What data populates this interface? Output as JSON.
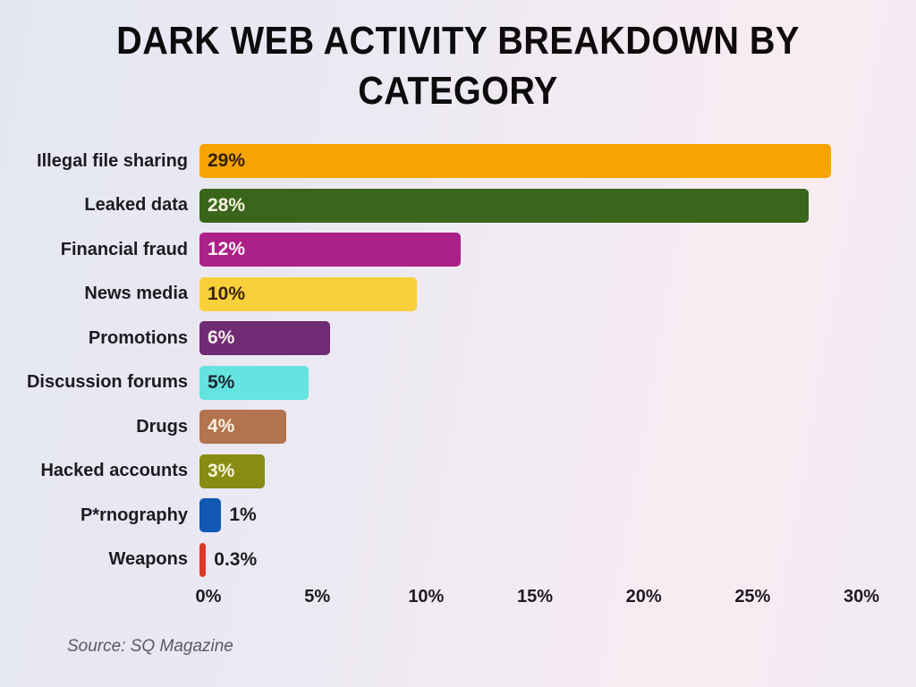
{
  "title": {
    "line1": "DARK WEB ACTIVITY BREAKDOWN BY",
    "line2": "CATEGORY",
    "full": "DARK WEB ACTIVITY BREAKDOWN BY CATEGORY"
  },
  "source": "Source: SQ Magazine",
  "colors": {
    "background_start": "#e4e7f2",
    "background_end": "#f8ecf2",
    "title_text": "#0d0b0c",
    "label_text": "#1e1a20",
    "source_text": "#5c5863"
  },
  "chart_data": {
    "type": "bar",
    "orientation": "horizontal",
    "title": "DARK WEB ACTIVITY BREAKDOWN BY CATEGORY",
    "xlabel": "",
    "ylabel": "",
    "xlim": [
      0,
      30
    ],
    "grid": false,
    "legend": null,
    "source": "Source: SQ Magazine",
    "categories": [
      "Illegal file sharing",
      "Leaked data",
      "Financial fraud",
      "News media",
      "Promotions",
      "Discussion forums",
      "Drugs",
      "Hacked accounts",
      "P*rnography",
      "Weapons"
    ],
    "values": [
      29,
      28,
      12,
      10,
      6,
      5,
      4,
      3,
      1,
      0.3
    ],
    "value_labels": [
      "29%",
      "28%",
      "12%",
      "10%",
      "6%",
      "5%",
      "4%",
      "3%",
      "1%",
      "0.3%"
    ],
    "bar_colors": [
      "#f6a404",
      "#3a661b",
      "#ac2089",
      "#f8d03a",
      "#6f2b73",
      "#65e3e0",
      "#b3734e",
      "#878c12",
      "#1258b4",
      "#db392d"
    ],
    "value_label_colors": [
      "#33200b",
      "#f7f3e0",
      "#fbf3ee",
      "#3a2410",
      "#f5efe8",
      "#1e2630",
      "#f9f2e2",
      "#f8f3dc",
      "#1e1a20",
      "#1e1a20"
    ],
    "value_label_positions": [
      "inside",
      "inside",
      "inside",
      "inside",
      "inside",
      "inside",
      "inside",
      "inside",
      "outside",
      "outside"
    ],
    "x_ticks": {
      "labels": [
        "0%",
        "5%",
        "10%",
        "15%",
        "20%",
        "25%",
        "30%"
      ],
      "values": [
        0,
        5,
        10,
        15,
        20,
        25,
        30
      ]
    }
  }
}
